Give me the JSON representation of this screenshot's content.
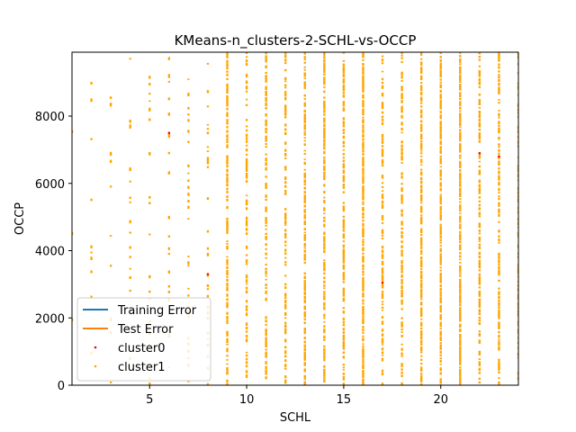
{
  "chart_data": {
    "type": "scatter",
    "title": "KMeans-n_clusters-2-SCHL-vs-OCCP",
    "xlabel": "SCHL",
    "ylabel": "OCCP",
    "xlim": [
      1,
      24
    ],
    "ylim": [
      0,
      9900
    ],
    "xticks": [
      5,
      10,
      15,
      20
    ],
    "yticks": [
      0,
      2000,
      4000,
      6000,
      8000
    ],
    "grid": false,
    "legend_position": "lower-left",
    "legend": [
      {
        "label": "Training Error",
        "kind": "line",
        "color": "#1f77b4"
      },
      {
        "label": "Test Error",
        "kind": "line",
        "color": "#ff7f0e"
      },
      {
        "label": "cluster0",
        "kind": "marker",
        "color": "#ff0000"
      },
      {
        "label": "cluster1",
        "kind": "marker",
        "color": "#ffa500"
      }
    ],
    "series": [
      {
        "name": "cluster0",
        "color": "#ff0000",
        "points": [
          [
            6,
            7500
          ],
          [
            8,
            3300
          ],
          [
            17,
            3050
          ],
          [
            22,
            6900
          ],
          [
            23,
            6800
          ]
        ]
      },
      {
        "name": "cluster1",
        "color": "#ffa500",
        "columns": [
          {
            "x": 1,
            "density": 0.15
          },
          {
            "x": 2,
            "density": 0.25
          },
          {
            "x": 3,
            "density": 0.25
          },
          {
            "x": 4,
            "density": 0.3
          },
          {
            "x": 5,
            "density": 0.35
          },
          {
            "x": 6,
            "density": 0.4
          },
          {
            "x": 7,
            "density": 0.45
          },
          {
            "x": 8,
            "density": 0.55
          },
          {
            "x": 9,
            "density": 0.85
          },
          {
            "x": 10,
            "density": 0.75
          },
          {
            "x": 11,
            "density": 0.8
          },
          {
            "x": 12,
            "density": 0.8
          },
          {
            "x": 13,
            "density": 0.9
          },
          {
            "x": 14,
            "density": 0.9
          },
          {
            "x": 15,
            "density": 0.9
          },
          {
            "x": 16,
            "density": 1.0
          },
          {
            "x": 17,
            "density": 0.85
          },
          {
            "x": 18,
            "density": 0.85
          },
          {
            "x": 19,
            "density": 0.95
          },
          {
            "x": 20,
            "density": 0.95
          },
          {
            "x": 21,
            "density": 1.0
          },
          {
            "x": 22,
            "density": 0.85
          },
          {
            "x": 23,
            "density": 0.9
          },
          {
            "x": 24,
            "density": 0.7
          }
        ]
      }
    ]
  }
}
